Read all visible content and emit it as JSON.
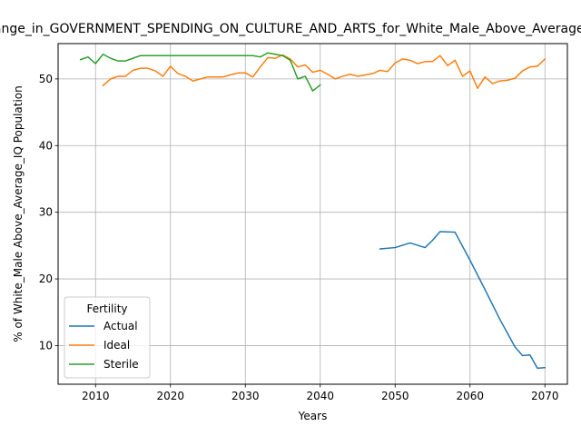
{
  "chart_data": {
    "type": "line",
    "title": "Change_in_GOVERNMENT_SPENDING_ON_CULTURE_AND_ARTS_for_White_Male_Above_Average_IQ",
    "xlabel": "Years",
    "ylabel": "% of White_Male Above_Average_IQ Population",
    "xlim": [
      2005,
      2073
    ],
    "ylim": [
      4.2,
      55.3
    ],
    "xticks": [
      2010,
      2020,
      2030,
      2040,
      2050,
      2060,
      2070
    ],
    "yticks": [
      10,
      20,
      30,
      40,
      50
    ],
    "grid": true,
    "legend": {
      "title": "Fertility",
      "placement": "lower-left"
    },
    "series": [
      {
        "name": "Actual",
        "color": "#1f77b4",
        "x": [
          2048,
          2050,
          2052,
          2054,
          2055,
          2056,
          2058,
          2060,
          2062,
          2064,
          2066,
          2067,
          2068,
          2069,
          2070
        ],
        "y": [
          24.5,
          24.7,
          25.4,
          24.7,
          25.8,
          27.1,
          27.0,
          22.8,
          18.4,
          13.9,
          9.8,
          8.5,
          8.6,
          6.6,
          6.7
        ]
      },
      {
        "name": "Ideal",
        "color": "#ff7f0e",
        "x": [
          2011,
          2012,
          2013,
          2014,
          2015,
          2016,
          2017,
          2018,
          2019,
          2020,
          2021,
          2022,
          2023,
          2024,
          2025,
          2026,
          2027,
          2028,
          2029,
          2030,
          2031,
          2032,
          2033,
          2034,
          2035,
          2036,
          2037,
          2038,
          2039,
          2040,
          2041,
          2042,
          2043,
          2044,
          2045,
          2046,
          2047,
          2048,
          2049,
          2050,
          2051,
          2052,
          2053,
          2054,
          2055,
          2056,
          2057,
          2058,
          2059,
          2060,
          2061,
          2062,
          2063,
          2064,
          2065,
          2066,
          2067,
          2068,
          2069,
          2070
        ],
        "y": [
          49.0,
          50.0,
          50.4,
          50.4,
          51.3,
          51.6,
          51.6,
          51.2,
          50.4,
          51.9,
          50.8,
          50.4,
          49.7,
          50.0,
          50.3,
          50.3,
          50.3,
          50.6,
          50.9,
          50.9,
          50.3,
          51.8,
          53.2,
          53.1,
          53.6,
          53.0,
          51.8,
          52.1,
          51.0,
          51.3,
          50.7,
          50.0,
          50.4,
          50.7,
          50.4,
          50.6,
          50.8,
          51.3,
          51.1,
          52.4,
          53.0,
          52.8,
          52.3,
          52.6,
          52.6,
          53.5,
          52.0,
          52.8,
          50.4,
          51.2,
          48.6,
          50.3,
          49.3,
          49.7,
          49.8,
          50.1,
          51.2,
          51.8,
          51.9,
          53.0
        ]
      },
      {
        "name": "Sterile",
        "color": "#2ca02c",
        "x": [
          2008,
          2009,
          2010,
          2011,
          2012,
          2013,
          2014,
          2015,
          2016,
          2017,
          2018,
          2019,
          2020,
          2021,
          2022,
          2023,
          2024,
          2025,
          2026,
          2027,
          2028,
          2029,
          2030,
          2031,
          2032,
          2033,
          2034,
          2035,
          2036,
          2037,
          2038,
          2039,
          2040
        ],
        "y": [
          52.9,
          53.3,
          52.3,
          53.7,
          53.1,
          52.7,
          52.7,
          53.1,
          53.5,
          53.5,
          53.5,
          53.5,
          53.5,
          53.5,
          53.5,
          53.5,
          53.5,
          53.5,
          53.5,
          53.5,
          53.5,
          53.5,
          53.5,
          53.5,
          53.3,
          53.9,
          53.7,
          53.5,
          52.8,
          50.0,
          50.4,
          48.2,
          49.1
        ]
      }
    ]
  }
}
